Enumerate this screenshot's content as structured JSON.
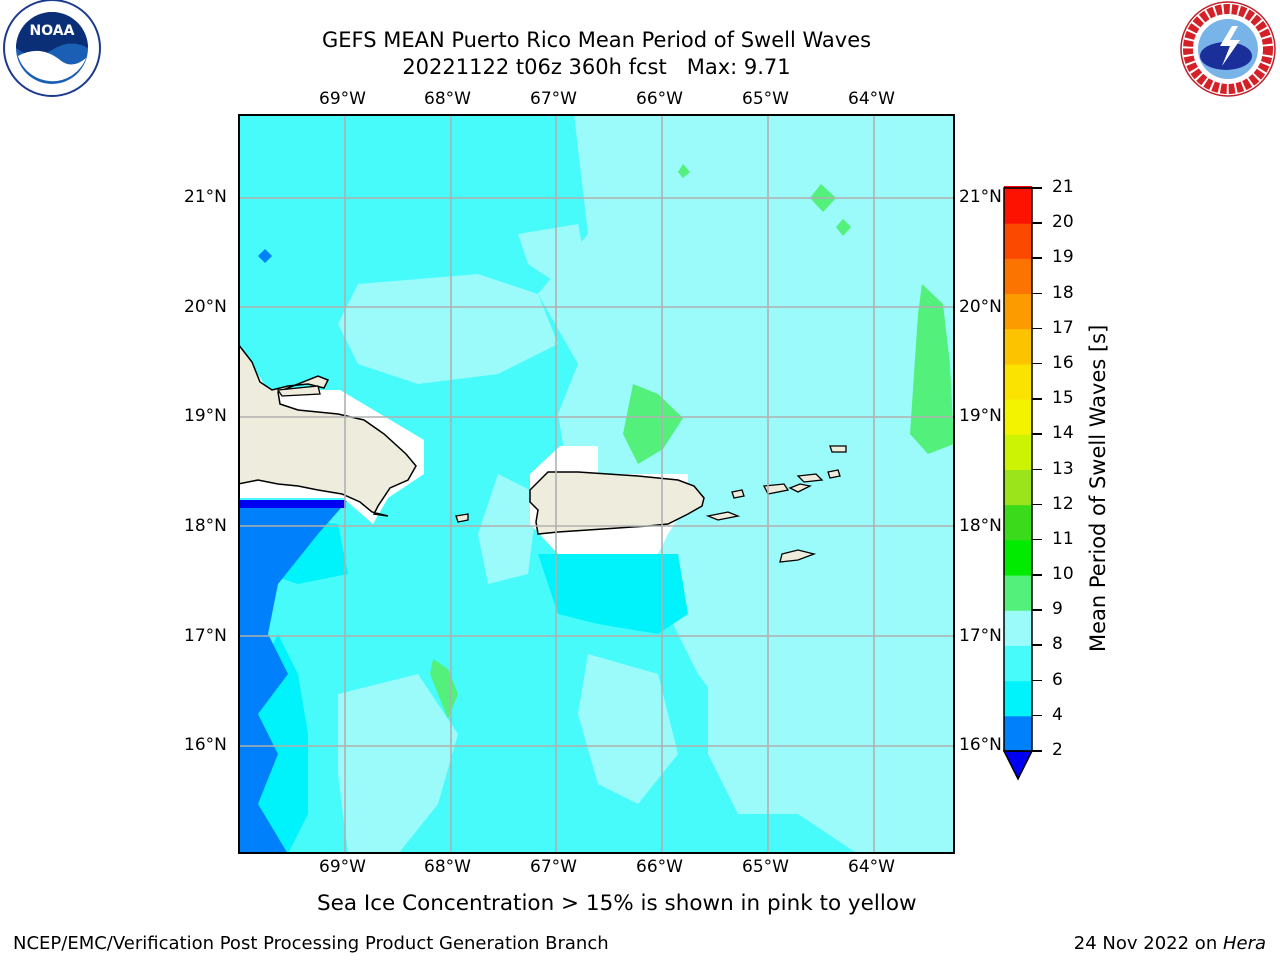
{
  "header": {
    "title_line1": "GEFS MEAN Puerto Rico Mean Period of Swell Waves",
    "title_line2": "20221122 t06z 360h fcst   Max: 9.71"
  },
  "logos": {
    "left": "noaa-logo",
    "left_text": "NOAA",
    "left_ring_text": "NATIONAL OCEANIC AND ATMOSPHERIC ADMINISTRATION · U.S. DEPARTMENT OF COMMERCE",
    "right": "national-weather-service-logo",
    "right_ring_text": "NATIONAL WEATHER SERVICE"
  },
  "map": {
    "lon_labels": [
      "69°W",
      "68°W",
      "67°W",
      "66°W",
      "65°W",
      "64°W"
    ],
    "lat_labels": [
      "21°N",
      "20°N",
      "19°N",
      "18°N",
      "17°N",
      "16°N"
    ],
    "colors": {
      "ocean_base": "#47fbfb",
      "light": "#9bfbfb",
      "cyan": "#00f3fb",
      "blue": "#0080fb",
      "dark_blue": "#0000f3",
      "green": "#53f07b",
      "land": "#eeecdc",
      "no_data": "#ffffff",
      "grid": "#b0b0b0"
    }
  },
  "colorbar": {
    "label": "Mean Period of Swell Waves [s]",
    "ticks": [
      "2",
      "4",
      "6",
      "8",
      "9",
      "10",
      "11",
      "12",
      "13",
      "14",
      "15",
      "16",
      "17",
      "18",
      "19",
      "20",
      "21"
    ],
    "colors": [
      "#0000f3",
      "#0080fb",
      "#00f3fb",
      "#47fbfb",
      "#9bfbfb",
      "#53f07b",
      "#00eb00",
      "#3bdb1b",
      "#9be31b",
      "#cbf303",
      "#f3f300",
      "#fbe300",
      "#fbc300",
      "#fb9b00",
      "#fb7300",
      "#fb4a00",
      "#fb1200",
      "#fb0000"
    ]
  },
  "caption": "Sea Ice Concentration > 15% is shown in pink to yellow",
  "footer": {
    "left": "NCEP/EMC/Verification Post Processing Product Generation Branch",
    "date": "24 Nov 2022 on ",
    "machine": "Hera"
  }
}
